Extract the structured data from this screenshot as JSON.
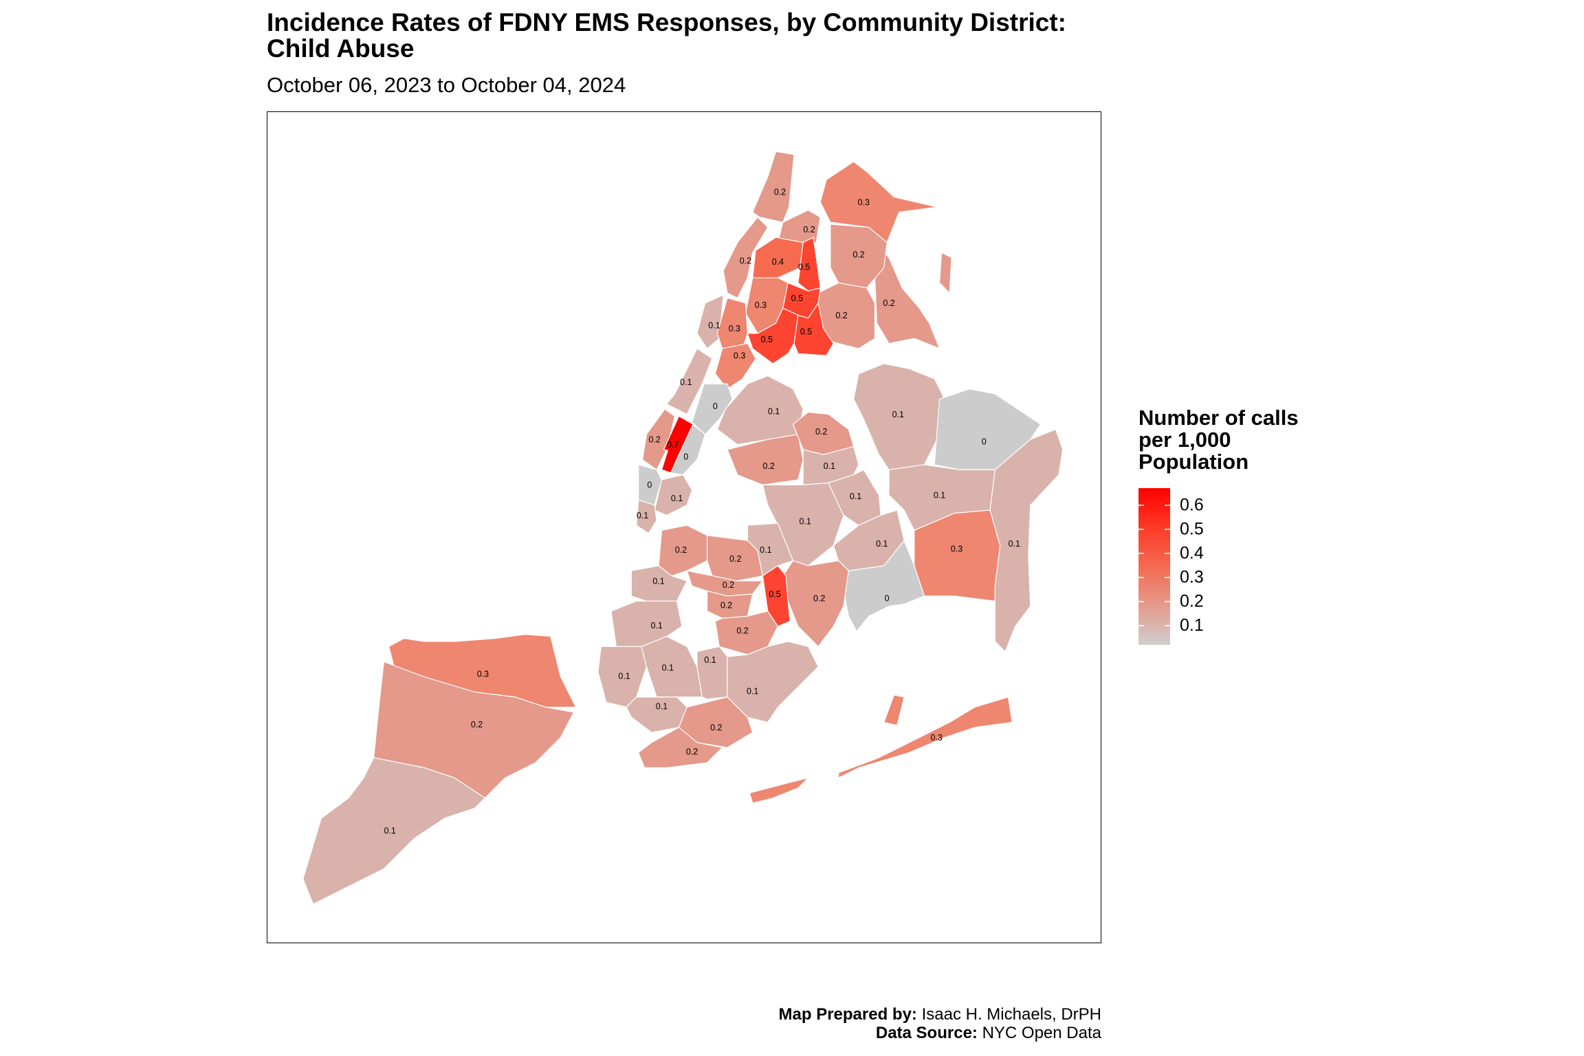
{
  "title_line1": "Incidence Rates of FDNY EMS Responses, by Community District:",
  "title_line2": "Child Abuse",
  "subtitle": "October 06, 2023 to October 04, 2024",
  "legend": {
    "title_line1": "Number of calls",
    "title_line2": "per 1,000",
    "title_line3": "Population",
    "ticks": [
      "0.6",
      "0.5",
      "0.4",
      "0.3",
      "0.2",
      "0.1"
    ],
    "color_low": "#CCCCCC",
    "color_high": "#FF0000"
  },
  "caption": {
    "prepared_label": "Map Prepared by:",
    "prepared_value": "Isaac H. Michaels, DrPH",
    "source_label": "Data Source:",
    "source_value": "NYC Open Data"
  },
  "chart_data": {
    "type": "choropleth",
    "title": "Incidence Rates of FDNY EMS Responses, by Community District: Child Abuse",
    "subtitle": "October 06, 2023 to October 04, 2024",
    "legend_title": "Number of calls per 1,000 Population",
    "scale_range": [
      0,
      0.7
    ],
    "district_values": {
      "bronx": [
        0.2,
        0.2,
        0.3,
        0.2,
        0.2,
        0.2,
        0.4,
        0.5,
        0.3,
        0.5,
        0.5,
        0.5
      ],
      "manhattan": [
        0.2,
        0.1,
        0.3,
        0.3,
        0.1,
        0,
        0.2,
        0.7,
        0,
        0,
        0.1,
        0.1
      ],
      "queens": [
        0.1,
        0.2,
        0.2,
        0.1,
        0.1,
        0,
        0.1,
        0.1,
        0.1,
        0.1,
        0.3,
        0,
        0.1,
        0.3
      ],
      "brooklyn": [
        0.2,
        0.2,
        0.1,
        0.2,
        0.5,
        0.1,
        0.2,
        0.1,
        0.2,
        0.2,
        0.1,
        0.1,
        0.1,
        0.1,
        0.1,
        0.2,
        0.2
      ],
      "staten_island": [
        0.3,
        0.2,
        0.1
      ]
    }
  }
}
